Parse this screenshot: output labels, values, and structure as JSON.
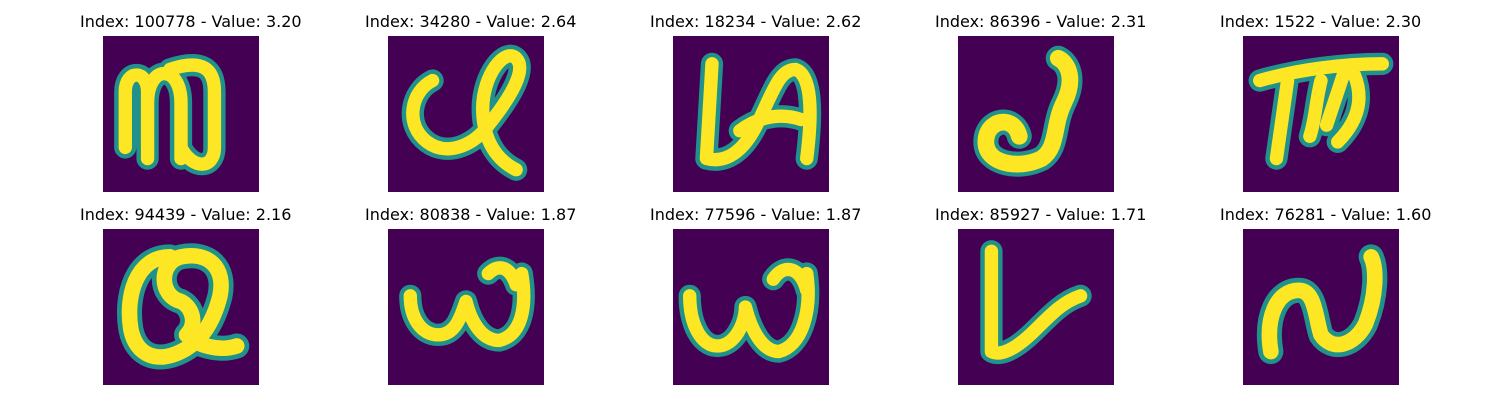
{
  "colors": {
    "background": "#440154",
    "stroke_core": "#FDE725",
    "stroke_edge": "#21918C"
  },
  "panels": [
    {
      "title": "Index: 100778 - Value: 3.20",
      "glyph": "handwritten-n-glyph"
    },
    {
      "title": "Index: 34280 - Value: 2.64",
      "glyph": "handwritten-loop-glyph"
    },
    {
      "title": "Index: 18234 - Value: 2.62",
      "glyph": "handwritten-la-glyph"
    },
    {
      "title": "Index: 86396 - Value: 2.31",
      "glyph": "handwritten-j-glyph"
    },
    {
      "title": "Index: 1522 - Value: 2.30",
      "glyph": "handwritten-tm-glyph"
    },
    {
      "title": "Index: 94439 - Value: 2.16",
      "glyph": "handwritten-q-glyph"
    },
    {
      "title": "Index: 80838 - Value: 1.87",
      "glyph": "handwritten-w-glyph"
    },
    {
      "title": "Index: 77596 - Value: 1.87",
      "glyph": "handwritten-w-glyph"
    },
    {
      "title": "Index: 85927 - Value: 1.71",
      "glyph": "handwritten-l-glyph"
    },
    {
      "title": "Index: 76281 - Value: 1.60",
      "glyph": "handwritten-n-glyph"
    }
  ]
}
